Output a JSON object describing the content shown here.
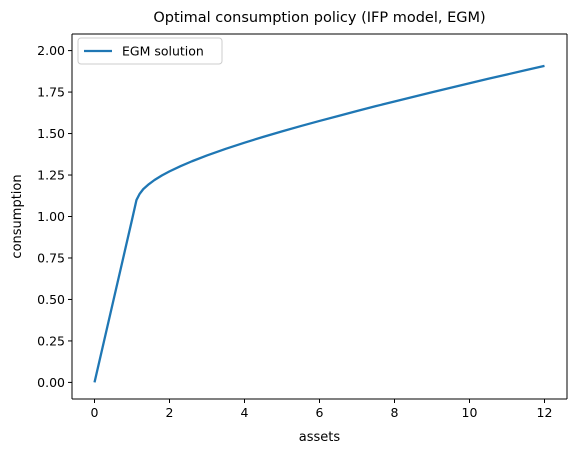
{
  "chart_data": {
    "type": "line",
    "title": "Optimal consumption policy (IFP model, EGM)",
    "xlabel": "assets",
    "ylabel": "consumption",
    "xlim": [
      -0.6,
      12.6
    ],
    "ylim": [
      -0.1,
      2.1
    ],
    "xticks": [
      0,
      2,
      4,
      6,
      8,
      10,
      12
    ],
    "xtick_labels": [
      "0",
      "2",
      "4",
      "6",
      "8",
      "10",
      "12"
    ],
    "yticks": [
      0.0,
      0.25,
      0.5,
      0.75,
      1.0,
      1.25,
      1.5,
      1.75,
      2.0
    ],
    "ytick_labels": [
      "0.00",
      "0.25",
      "0.50",
      "0.75",
      "1.00",
      "1.25",
      "1.50",
      "1.75",
      "2.00"
    ],
    "grid": false,
    "legend_position": "upper-left",
    "series": [
      {
        "name": "EGM solution",
        "color": "#1f77b4",
        "x": [
          0.0,
          0.25,
          0.5,
          0.75,
          1.0,
          1.12,
          1.2,
          1.3,
          1.45,
          1.6,
          1.8,
          2.0,
          2.3,
          2.6,
          3.0,
          3.5,
          4.0,
          4.5,
          5.0,
          5.5,
          6.0,
          6.5,
          7.0,
          7.5,
          8.0,
          8.5,
          9.0,
          9.5,
          10.0,
          10.5,
          11.0,
          11.5,
          12.0
        ],
        "y": [
          0.0,
          0.245,
          0.49,
          0.735,
          0.98,
          1.1,
          1.135,
          1.165,
          1.195,
          1.22,
          1.248,
          1.272,
          1.304,
          1.333,
          1.368,
          1.408,
          1.445,
          1.48,
          1.513,
          1.545,
          1.576,
          1.606,
          1.636,
          1.665,
          1.693,
          1.721,
          1.749,
          1.776,
          1.803,
          1.83,
          1.856,
          1.882,
          1.908
        ]
      }
    ]
  }
}
